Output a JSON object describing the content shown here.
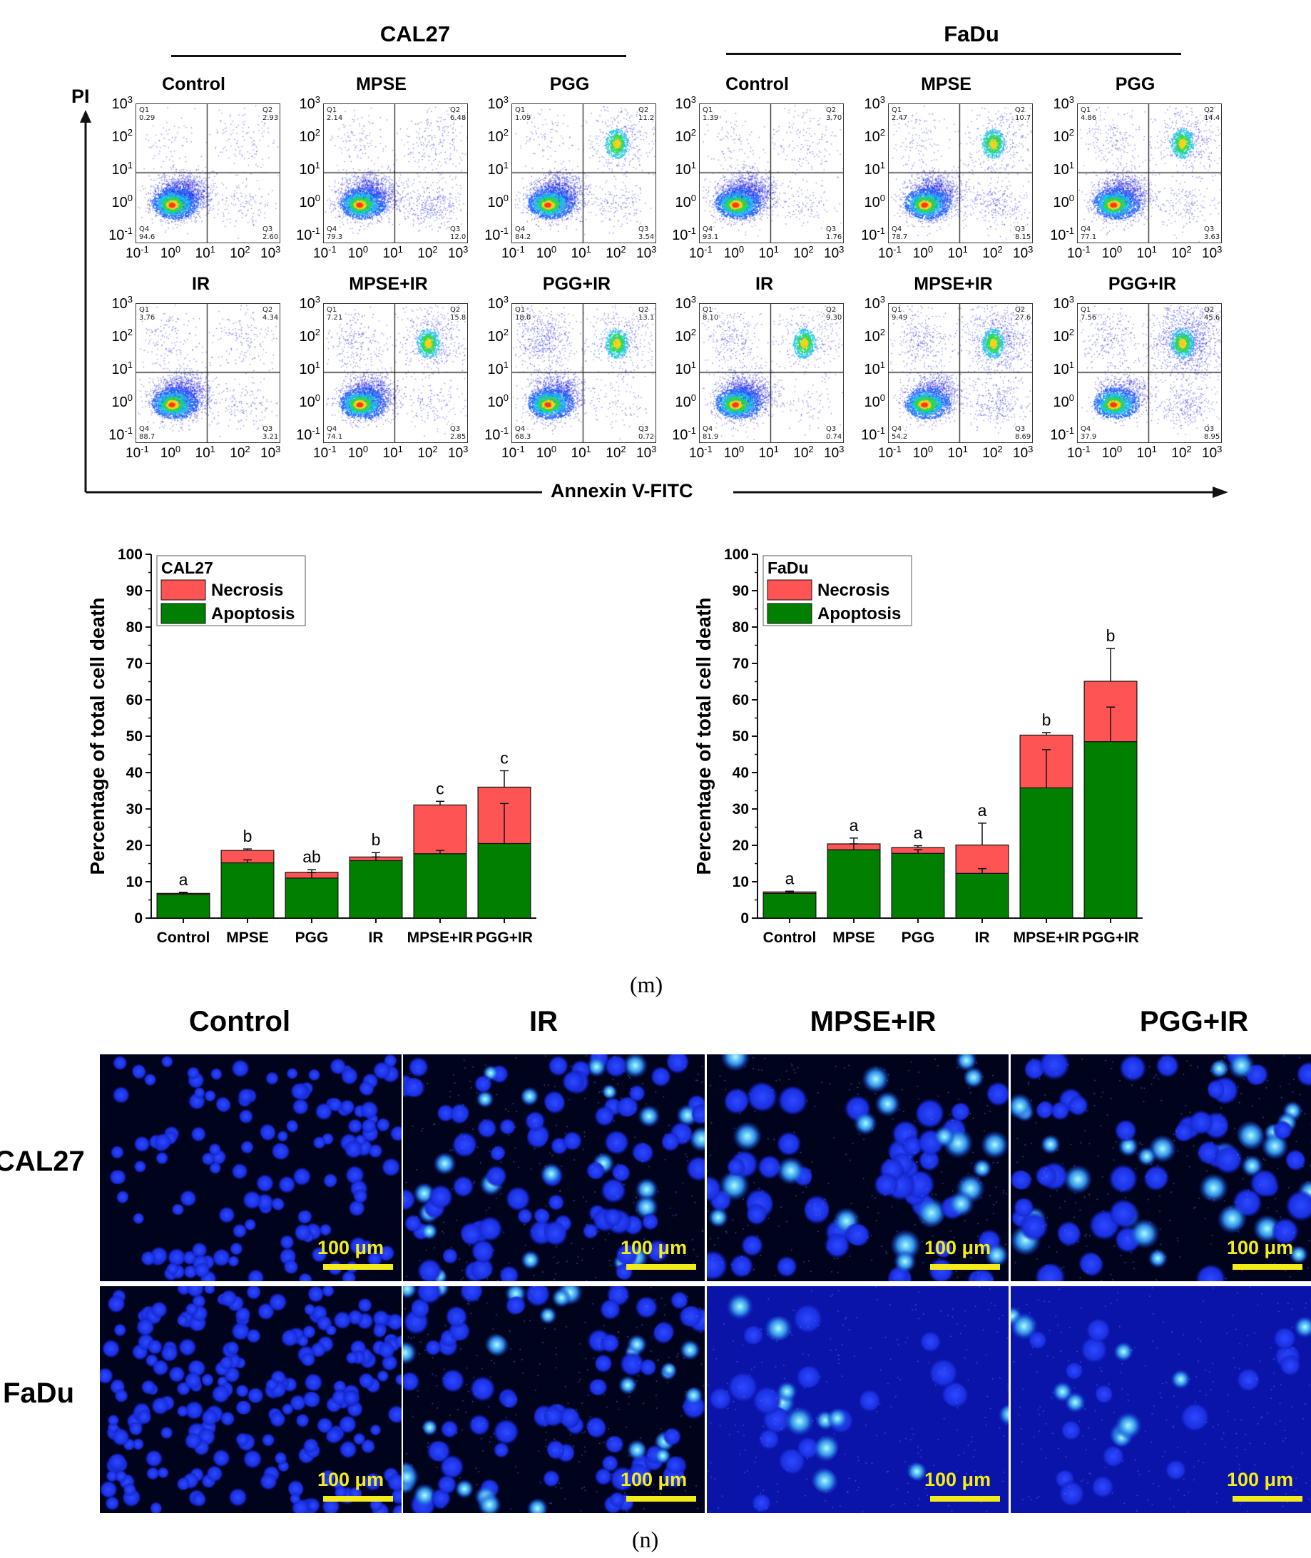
{
  "flow": {
    "groups": [
      {
        "name": "CAL27",
        "panels": [
          {
            "title": "Control",
            "q1": "0.29",
            "q2": "2.93",
            "q3": "2.60",
            "q4": "94.6"
          },
          {
            "title": "MPSE",
            "q1": "2.14",
            "q2": "6.48",
            "q3": "12.0",
            "q4": "79.3"
          },
          {
            "title": "PGG",
            "q1": "1.09",
            "q2": "11.2",
            "q3": "3.54",
            "q4": "84.2"
          },
          {
            "title": "IR",
            "q1": "3.76",
            "q2": "4.34",
            "q3": "3.21",
            "q4": "88.7"
          },
          {
            "title": "MPSE+IR",
            "q1": "7.21",
            "q2": "15.8",
            "q3": "2.85",
            "q4": "74.1"
          },
          {
            "title": "PGG+IR",
            "q1": "18.0",
            "q2": "13.1",
            "q3": "0.72",
            "q4": "68.3"
          }
        ]
      },
      {
        "name": "FaDu",
        "panels": [
          {
            "title": "Control",
            "q1": "1.39",
            "q2": "3.70",
            "q3": "1.76",
            "q4": "93.1"
          },
          {
            "title": "MPSE",
            "q1": "2.47",
            "q2": "10.7",
            "q3": "8.15",
            "q4": "78.7"
          },
          {
            "title": "PGG",
            "q1": "4.86",
            "q2": "14.4",
            "q3": "3.63",
            "q4": "77.1"
          },
          {
            "title": "IR",
            "q1": "8.10",
            "q2": "9.30",
            "q3": "0.74",
            "q4": "81.9"
          },
          {
            "title": "MPSE+IR",
            "q1": "9.49",
            "q2": "27.6",
            "q3": "8.69",
            "q4": "54.2"
          },
          {
            "title": "PGG+IR",
            "q1": "7.56",
            "q2": "45.6",
            "q3": "8.95",
            "q4": "37.9"
          }
        ]
      }
    ],
    "quadrant_names": [
      "Q1",
      "Q2",
      "Q3",
      "Q4"
    ],
    "y_axis_label": "PI",
    "x_axis_label": "Annexin V-FITC",
    "tick_base": "10",
    "tick_exps": [
      "-1",
      "0",
      "1",
      "2",
      "3"
    ]
  },
  "chart_data": [
    {
      "type": "bar",
      "stacked": true,
      "legend_title": "CAL27",
      "categories": [
        "Control",
        "MPSE",
        "PGG",
        "IR",
        "MPSE+IR",
        "PGG+IR"
      ],
      "series": [
        {
          "name": "Apoptosis",
          "color": "#007f00",
          "values": [
            6.5,
            15.2,
            11.0,
            15.8,
            17.7,
            20.5
          ],
          "errors": [
            0.5,
            0.8,
            1.5,
            1.0,
            0.9,
            11.0
          ]
        },
        {
          "name": "Necrosis",
          "color": "#ff5454",
          "values": [
            0.3,
            3.4,
            1.6,
            1.0,
            13.4,
            15.5
          ],
          "errors": [
            0.3,
            0.4,
            0.7,
            1.2,
            1.0,
            4.5
          ]
        }
      ],
      "significance": [
        "a",
        "b",
        "ab",
        "b",
        "c",
        "c"
      ],
      "ylabel": "Percentage of total cell death",
      "ylim": [
        0,
        100
      ],
      "yticks": [
        "0",
        "10",
        "20",
        "30",
        "40",
        "50",
        "60",
        "70",
        "80",
        "90",
        "100"
      ],
      "legend_position": "top-left"
    },
    {
      "type": "bar",
      "stacked": true,
      "legend_title": "FaDu",
      "categories": [
        "Control",
        "MPSE",
        "PGG",
        "IR",
        "MPSE+IR",
        "PGG+IR"
      ],
      "series": [
        {
          "name": "Apoptosis",
          "color": "#007f00",
          "values": [
            6.8,
            18.8,
            17.8,
            12.3,
            35.8,
            48.5
          ],
          "errors": [
            0.3,
            1.6,
            1.0,
            1.3,
            10.5,
            9.5
          ]
        },
        {
          "name": "Necrosis",
          "color": "#ff5454",
          "values": [
            0.4,
            1.6,
            1.6,
            7.8,
            14.5,
            16.6
          ],
          "errors": [
            0.2,
            1.6,
            0.5,
            6.0,
            0.7,
            9.0
          ]
        }
      ],
      "significance": [
        "a",
        "a",
        "a",
        "a",
        "b",
        "b"
      ],
      "ylabel": "Percentage of total cell death",
      "ylim": [
        0,
        100
      ],
      "yticks": [
        "0",
        "10",
        "20",
        "30",
        "40",
        "50",
        "60",
        "70",
        "80",
        "90",
        "100"
      ],
      "legend_position": "top-left"
    }
  ],
  "captions": {
    "m": "(m)",
    "n": "(n)"
  },
  "microscopy": {
    "columns": [
      "Control",
      "IR",
      "MPSE+IR",
      "PGG+IR"
    ],
    "rows": [
      "CAL27",
      "FaDu"
    ],
    "scale_label": "100 μm"
  }
}
